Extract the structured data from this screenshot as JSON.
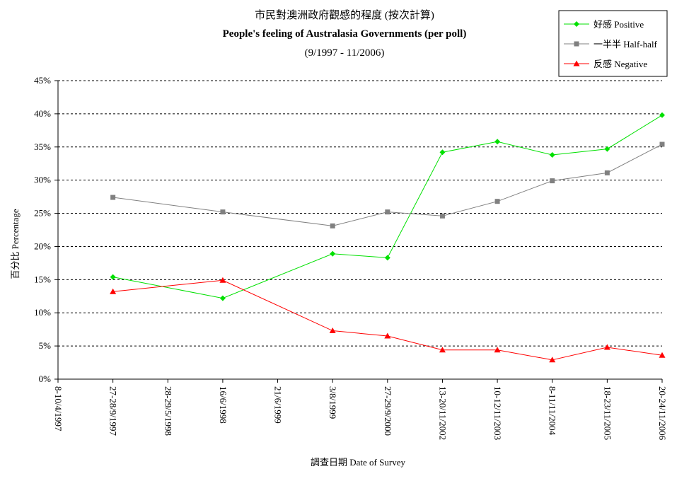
{
  "chart_data": {
    "type": "line",
    "title_lines": [
      "市民對澳洲政府觀感的程度 (按次計算)",
      "People's feeling of Australasia Governments (per poll)",
      "(9/1997 - 11/2006)"
    ],
    "xlabel": "調查日期 Date of Survey",
    "ylabel": "百分比 Percentage",
    "ylim": [
      0,
      45
    ],
    "yticks": [
      0,
      5,
      10,
      15,
      20,
      25,
      30,
      35,
      40,
      45
    ],
    "ytick_labels": [
      "0%",
      "5%",
      "10%",
      "15%",
      "20%",
      "25%",
      "30%",
      "35%",
      "40%",
      "45%"
    ],
    "categories": [
      "8-10/4/1997",
      "27-28/9/1997",
      "28-29/5/1998",
      "16/6/1998",
      "21/6/1999",
      "3/8/1999",
      "27-29/9/2000",
      "13-20/11/2002",
      "10-12/11/2003",
      "8-11/11/2004",
      "18-23/11/2005",
      "20-24/11/2006"
    ],
    "grid": true,
    "legend_position": "top-right",
    "series": [
      {
        "name": "好感 Positive",
        "color": "#00e000",
        "marker": "diamond",
        "points": [
          [
            1,
            15.4
          ],
          [
            3,
            12.2
          ],
          [
            5,
            18.9
          ],
          [
            6,
            18.3
          ],
          [
            7,
            34.2
          ],
          [
            8,
            35.8
          ],
          [
            9,
            33.8
          ],
          [
            10,
            34.7
          ],
          [
            11,
            39.8
          ]
        ]
      },
      {
        "name": "一半半 Half-half",
        "color": "#808080",
        "marker": "square",
        "points": [
          [
            1,
            27.4
          ],
          [
            3,
            25.2
          ],
          [
            5,
            23.1
          ],
          [
            6,
            25.2
          ],
          [
            7,
            24.6
          ],
          [
            8,
            26.8
          ],
          [
            9,
            29.9
          ],
          [
            10,
            31.1
          ],
          [
            11,
            35.4
          ]
        ]
      },
      {
        "name": "反感 Negative",
        "color": "#ff0000",
        "marker": "triangle",
        "points": [
          [
            1,
            13.2
          ],
          [
            3,
            14.9
          ],
          [
            5,
            7.3
          ],
          [
            6,
            6.5
          ],
          [
            7,
            4.4
          ],
          [
            8,
            4.4
          ],
          [
            9,
            2.9
          ],
          [
            10,
            4.8
          ],
          [
            11,
            3.6
          ]
        ]
      }
    ]
  }
}
